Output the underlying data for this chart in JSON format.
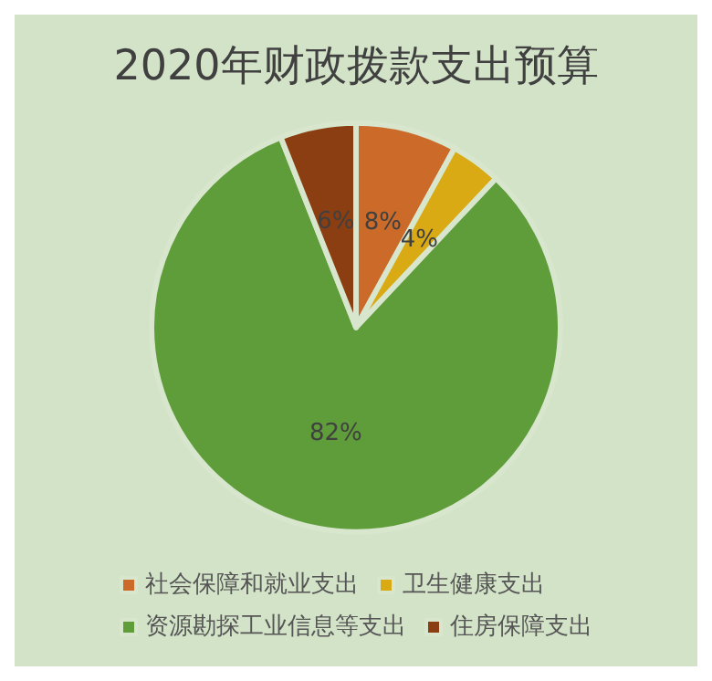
{
  "chart_data": {
    "type": "pie",
    "title": "2020年财政拨款支出预算",
    "categories": [
      "社会保障和就业支出",
      "卫生健康支出",
      "资源勘探工业信息等支出",
      "住房保障支出"
    ],
    "values": [
      8,
      4,
      82,
      6
    ],
    "colors": [
      "#cc6a2a",
      "#d9aa14",
      "#5e9d3a",
      "#8a3e12"
    ],
    "value_labels": [
      "8%",
      "4%",
      "82%",
      "6%"
    ],
    "legend": "bottom"
  }
}
